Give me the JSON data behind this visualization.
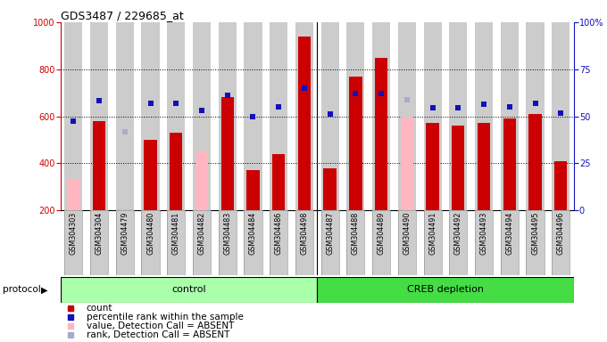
{
  "title": "GDS3487 / 229685_at",
  "samples": [
    "GSM304303",
    "GSM304304",
    "GSM304479",
    "GSM304480",
    "GSM304481",
    "GSM304482",
    "GSM304483",
    "GSM304484",
    "GSM304486",
    "GSM304498",
    "GSM304487",
    "GSM304488",
    "GSM304489",
    "GSM304490",
    "GSM304491",
    "GSM304492",
    "GSM304493",
    "GSM304494",
    "GSM304495",
    "GSM304496"
  ],
  "count_present": [
    null,
    580,
    null,
    500,
    530,
    null,
    680,
    370,
    440,
    940,
    380,
    770,
    850,
    null,
    570,
    560,
    570,
    590,
    610,
    410
  ],
  "count_absent": [
    330,
    null,
    null,
    null,
    null,
    450,
    null,
    null,
    null,
    null,
    null,
    null,
    null,
    600,
    null,
    null,
    null,
    null,
    null,
    null
  ],
  "rank_present": [
    580,
    665,
    null,
    655,
    655,
    625,
    690,
    600,
    640,
    720,
    610,
    695,
    695,
    null,
    635,
    635,
    650,
    640,
    655,
    615
  ],
  "rank_absent": [
    null,
    null,
    535,
    null,
    null,
    null,
    null,
    null,
    null,
    null,
    null,
    null,
    null,
    670,
    null,
    null,
    null,
    null,
    null,
    null
  ],
  "n_control": 10,
  "n_creb": 10,
  "ylim_left": [
    200,
    1000
  ],
  "yticks_left": [
    200,
    400,
    600,
    800,
    1000
  ],
  "yticks_right": [
    0,
    25,
    50,
    75,
    100
  ],
  "bar_red": "#CC0000",
  "bar_pink": "#FFB6C1",
  "dot_blue": "#1111BB",
  "dot_lblue": "#AAAACC",
  "ctrl_color": "#AAFFAA",
  "creb_color": "#44DD44",
  "sample_bg": "#CCCCCC",
  "control_label": "control",
  "creb_label": "CREB depletion",
  "protocol_label": "protocol"
}
